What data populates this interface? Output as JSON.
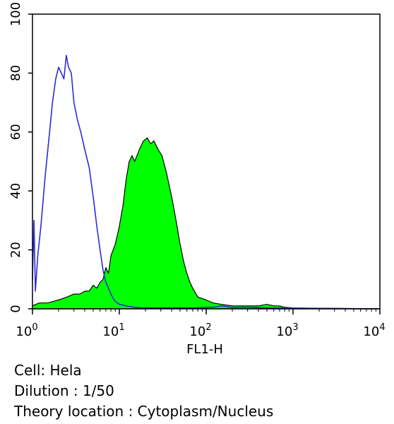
{
  "chart_data": {
    "type": "area",
    "xlabel": "FL1-H",
    "ylabel": "",
    "xscale": "log",
    "xlim": [
      1,
      10000
    ],
    "ylim": [
      0,
      100
    ],
    "x_ticks": [
      {
        "base": "10",
        "exp": "0"
      },
      {
        "base": "10",
        "exp": "1"
      },
      {
        "base": "10",
        "exp": "2"
      },
      {
        "base": "10",
        "exp": "3"
      },
      {
        "base": "10",
        "exp": "4"
      }
    ],
    "y_ticks": [
      "0",
      "20",
      "40",
      "60",
      "80",
      "100"
    ],
    "y_tick_values": [
      0,
      20,
      40,
      60,
      80,
      100
    ],
    "grid": false,
    "legend": "none",
    "series": [
      {
        "style": "outline",
        "color": "#2b2bd9",
        "x": [
          1.0,
          1.04,
          1.08,
          1.15,
          1.25,
          1.4,
          1.55,
          1.7,
          1.85,
          2.0,
          2.15,
          2.3,
          2.45,
          2.6,
          2.8,
          3.0,
          3.3,
          3.6,
          4.0,
          4.5,
          5.0,
          5.5,
          6.0,
          6.5,
          7.0,
          7.5,
          8.0,
          8.5,
          9.0,
          10,
          12,
          15,
          20,
          30,
          50,
          80,
          100,
          120,
          150,
          200,
          300,
          500,
          1000,
          10000
        ],
        "y": [
          10,
          30,
          6,
          18,
          28,
          45,
          58,
          70,
          78,
          82,
          80,
          78,
          86,
          82,
          80,
          70,
          64,
          60,
          54,
          48,
          38,
          28,
          20,
          13,
          9,
          7,
          5,
          3.5,
          2.5,
          1.5,
          1,
          0.5,
          0.3,
          0.3,
          0.3,
          0.3,
          0.5,
          0.5,
          1,
          0.5,
          0.5,
          0.3,
          0.2,
          0
        ]
      },
      {
        "style": "filled",
        "color": "#00ff00",
        "x": [
          1.0,
          1.2,
          1.5,
          2.0,
          2.5,
          3.0,
          3.5,
          4.0,
          4.5,
          5.0,
          5.5,
          6.0,
          6.5,
          7.0,
          7.5,
          8.0,
          9.0,
          10,
          11,
          12,
          13,
          14,
          15,
          17,
          19,
          21,
          23,
          25,
          28,
          31,
          35,
          40,
          45,
          50,
          55,
          60,
          65,
          70,
          80,
          100,
          120,
          150,
          200,
          300,
          400,
          500,
          600,
          700,
          800,
          1000,
          10000
        ],
        "y": [
          1,
          2,
          2,
          3,
          4,
          5,
          5,
          6,
          6,
          8,
          7,
          9,
          10,
          14,
          12,
          18,
          22,
          28,
          35,
          44,
          50,
          52,
          50,
          54,
          57,
          58,
          56,
          57,
          54,
          52,
          46,
          38,
          30,
          22,
          16,
          12,
          9,
          7,
          4,
          3,
          2,
          1.5,
          1,
          1,
          1,
          1.5,
          1,
          1,
          0.5,
          0.3,
          0
        ]
      }
    ]
  },
  "notes": {
    "cell": "Cell: Hela",
    "dilution": "Dilution : 1/50",
    "location": "Theory location : Cytoplasm/Nucleus"
  }
}
